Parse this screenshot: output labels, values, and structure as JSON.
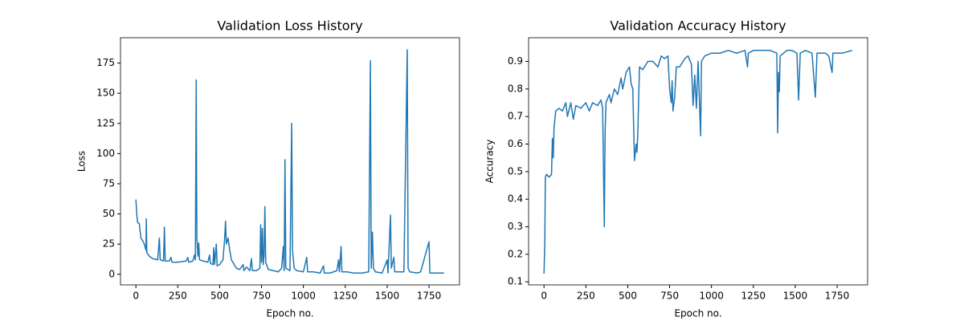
{
  "chart_data": [
    {
      "type": "line",
      "title": "Validation Loss History",
      "xlabel": "Epoch no.",
      "ylabel": "Loss",
      "color": "#1f77b4",
      "x": [
        0,
        5,
        10,
        20,
        30,
        40,
        50,
        60,
        62,
        65,
        80,
        100,
        130,
        140,
        145,
        165,
        170,
        175,
        200,
        210,
        215,
        250,
        300,
        310,
        315,
        340,
        350,
        355,
        360,
        364,
        370,
        375,
        380,
        400,
        430,
        440,
        445,
        460,
        465,
        470,
        480,
        485,
        500,
        520,
        530,
        535,
        540,
        550,
        560,
        570,
        600,
        620,
        640,
        645,
        660,
        680,
        690,
        695,
        720,
        740,
        745,
        750,
        755,
        760,
        765,
        770,
        775,
        790,
        820,
        850,
        870,
        880,
        885,
        890,
        895,
        920,
        930,
        935,
        945,
        960,
        1000,
        1020,
        1025,
        1060,
        1100,
        1120,
        1125,
        1160,
        1200,
        1210,
        1215,
        1225,
        1230,
        1260,
        1300,
        1350,
        1390,
        1400,
        1405,
        1412,
        1418,
        1430,
        1470,
        1500,
        1505,
        1520,
        1525,
        1540,
        1545,
        1560,
        1600,
        1620,
        1625,
        1635,
        1680,
        1700,
        1750,
        1755,
        1800,
        1840
      ],
      "values": [
        62,
        50,
        43,
        42,
        30,
        28,
        25,
        20,
        46,
        18,
        15,
        13,
        12,
        30,
        12,
        11,
        39,
        11,
        11,
        14,
        10,
        10,
        11,
        14,
        10,
        11,
        16,
        12,
        161,
        30,
        15,
        26,
        12,
        11,
        10,
        16,
        9,
        8,
        22,
        8,
        25,
        7,
        8,
        12,
        30,
        44,
        25,
        30,
        20,
        12,
        5,
        4,
        8,
        3,
        6,
        3,
        13,
        3,
        3,
        5,
        41,
        10,
        38,
        8,
        15,
        56,
        10,
        4,
        3,
        2,
        5,
        23,
        3,
        95,
        5,
        3,
        125,
        20,
        5,
        3,
        2,
        14,
        2,
        2,
        1,
        7,
        1,
        1,
        3,
        12,
        2,
        23,
        2,
        2,
        1,
        1,
        2,
        177,
        5,
        35,
        5,
        2,
        1,
        12,
        1,
        49,
        5,
        14,
        2,
        2,
        2,
        186,
        5,
        2,
        1,
        2,
        27,
        1,
        1,
        1
      ],
      "xlim": [
        -92,
        1932
      ],
      "ylim": [
        -8.8,
        196
      ],
      "xticks": [
        0,
        250,
        500,
        750,
        1000,
        1250,
        1500,
        1750
      ],
      "yticks": [
        0,
        25,
        50,
        75,
        100,
        125,
        150,
        175
      ]
    },
    {
      "type": "line",
      "title": "Validation Accuracy History",
      "xlabel": "Epoch no.",
      "ylabel": "Accuracy",
      "color": "#1f77b4",
      "x": [
        0,
        5,
        8,
        15,
        30,
        45,
        50,
        55,
        60,
        70,
        90,
        110,
        130,
        140,
        160,
        175,
        190,
        220,
        250,
        270,
        290,
        320,
        340,
        350,
        360,
        365,
        370,
        390,
        400,
        420,
        440,
        460,
        470,
        490,
        510,
        520,
        530,
        540,
        550,
        555,
        560,
        570,
        590,
        620,
        650,
        680,
        700,
        720,
        740,
        750,
        760,
        765,
        770,
        780,
        790,
        810,
        840,
        860,
        880,
        890,
        900,
        910,
        920,
        935,
        940,
        960,
        1000,
        1050,
        1100,
        1150,
        1200,
        1215,
        1220,
        1250,
        1300,
        1350,
        1390,
        1395,
        1400,
        1405,
        1410,
        1450,
        1480,
        1510,
        1520,
        1530,
        1560,
        1600,
        1620,
        1630,
        1680,
        1700,
        1720,
        1725,
        1780,
        1840
      ],
      "values": [
        0.13,
        0.25,
        0.48,
        0.49,
        0.48,
        0.49,
        0.62,
        0.55,
        0.66,
        0.72,
        0.73,
        0.72,
        0.75,
        0.7,
        0.75,
        0.69,
        0.74,
        0.73,
        0.75,
        0.72,
        0.75,
        0.74,
        0.76,
        0.73,
        0.3,
        0.65,
        0.75,
        0.78,
        0.75,
        0.8,
        0.78,
        0.84,
        0.8,
        0.86,
        0.88,
        0.82,
        0.8,
        0.54,
        0.6,
        0.57,
        0.64,
        0.88,
        0.87,
        0.9,
        0.9,
        0.88,
        0.92,
        0.91,
        0.92,
        0.8,
        0.75,
        0.83,
        0.72,
        0.77,
        0.88,
        0.88,
        0.91,
        0.92,
        0.89,
        0.74,
        0.85,
        0.73,
        0.9,
        0.63,
        0.9,
        0.92,
        0.93,
        0.93,
        0.94,
        0.93,
        0.94,
        0.88,
        0.93,
        0.94,
        0.94,
        0.94,
        0.93,
        0.64,
        0.86,
        0.79,
        0.92,
        0.94,
        0.94,
        0.93,
        0.76,
        0.93,
        0.94,
        0.93,
        0.77,
        0.93,
        0.93,
        0.92,
        0.86,
        0.93,
        0.93,
        0.94
      ],
      "xlim": [
        -92,
        1932
      ],
      "ylim": [
        0.089,
        0.986
      ],
      "xticks": [
        0,
        250,
        500,
        750,
        1000,
        1250,
        1500,
        1750
      ],
      "yticks": [
        0.1,
        0.2,
        0.3,
        0.4,
        0.5,
        0.6,
        0.7,
        0.8,
        0.9
      ]
    }
  ]
}
